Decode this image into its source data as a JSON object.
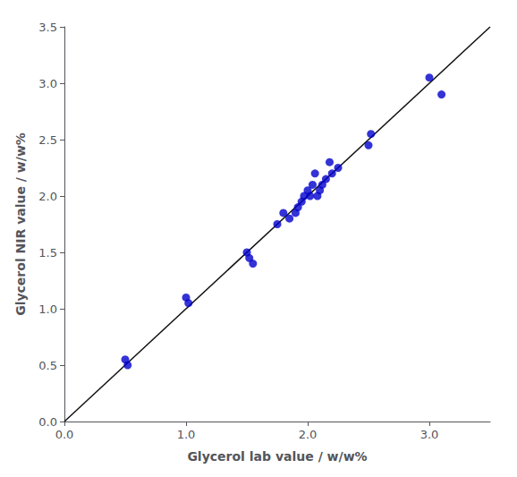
{
  "chart_data": {
    "type": "scatter",
    "xlabel": "Glycerol lab value / w/w%",
    "ylabel": "Glycerol NIR value / w/w%",
    "series": [
      {
        "type": "scatter",
        "color": "#0000CD",
        "x": [
          0.5,
          0.52,
          1.0,
          1.02,
          1.5,
          1.52,
          1.55,
          1.75,
          1.8,
          1.85,
          1.9,
          1.92,
          1.95,
          1.97,
          2.0,
          2.02,
          2.04,
          2.06,
          2.08,
          2.1,
          2.12,
          2.15,
          2.18,
          2.2,
          2.25,
          2.5,
          2.52,
          3.0,
          3.1
        ],
        "values": [
          0.55,
          0.5,
          1.1,
          1.05,
          1.5,
          1.45,
          1.4,
          1.75,
          1.85,
          1.8,
          1.85,
          1.9,
          1.95,
          2.0,
          2.05,
          2.0,
          2.1,
          2.2,
          2.0,
          2.05,
          2.1,
          2.15,
          2.3,
          2.2,
          2.25,
          2.45,
          2.55,
          3.05,
          2.9
        ]
      },
      {
        "type": "line",
        "color": "#111111",
        "x": [
          0.0,
          3.5
        ],
        "values": [
          0.0,
          3.5
        ]
      }
    ],
    "xlim": [
      0.0,
      3.5
    ],
    "ylim": [
      0.0,
      3.5
    ],
    "xticks": [
      {
        "value": 0.0,
        "label": "0.0"
      },
      {
        "value": 1.0,
        "label": "1.0"
      },
      {
        "value": 2.0,
        "label": "2.0"
      },
      {
        "value": 3.0,
        "label": "3.0"
      }
    ],
    "yticks": [
      {
        "value": 0.0,
        "label": "0.0"
      },
      {
        "value": 0.5,
        "label": "0.5"
      },
      {
        "value": 1.0,
        "label": "1.0"
      },
      {
        "value": 1.5,
        "label": "1.5"
      },
      {
        "value": 2.0,
        "label": "2.0"
      },
      {
        "value": 2.5,
        "label": "2.5"
      },
      {
        "value": 3.0,
        "label": "3.0"
      },
      {
        "value": 3.5,
        "label": "3.5"
      }
    ],
    "grid": false
  }
}
